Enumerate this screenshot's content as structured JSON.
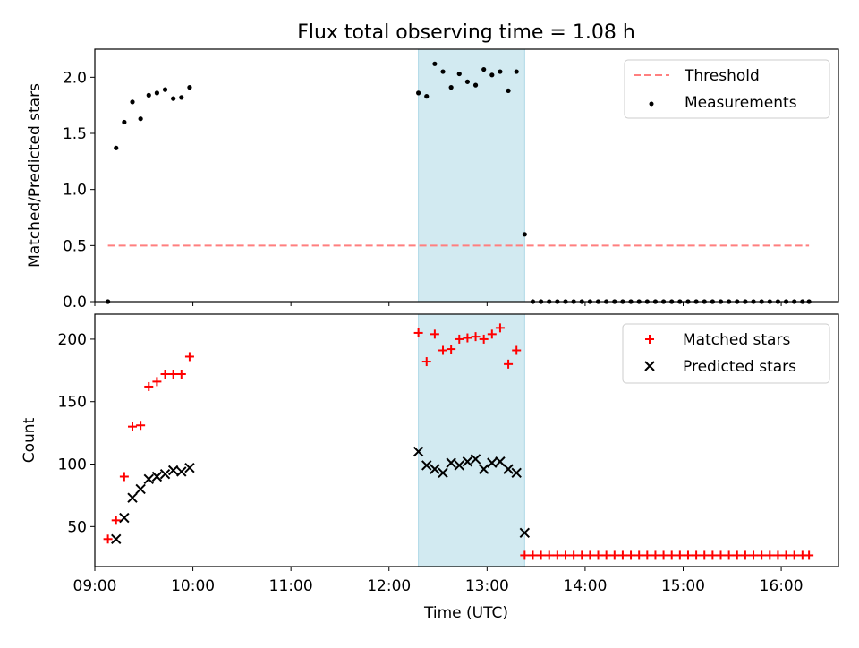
{
  "title": "Flux total observing time = 1.08 h",
  "colors": {
    "threshold": "#ff7f7f",
    "highlight": "#add8e6",
    "measurement": "#000000",
    "matched": "#ff0000",
    "predicted": "#000000"
  },
  "chart_data": [
    {
      "type": "scatter",
      "ylabel": "Matched/Predicted stars",
      "ylim": [
        0,
        2.25
      ],
      "xlim": [
        "09:00",
        "16:35"
      ],
      "yticks": [
        "0.0",
        "0.5",
        "1.0",
        "1.5",
        "2.0"
      ],
      "highlight_span": [
        "12:18",
        "13:23"
      ],
      "legend_position": "top-right",
      "legend": [
        "Threshold",
        "Measurements"
      ],
      "threshold": {
        "name": "Threshold",
        "value": 0.5,
        "x": [
          "09:08",
          "16:17"
        ]
      },
      "series": [
        {
          "name": "Measurements",
          "x": [
            "09:08",
            "09:13",
            "09:18",
            "09:23",
            "09:28",
            "09:33",
            "09:38",
            "09:43",
            "09:48",
            "09:53",
            "09:58",
            "12:18",
            "12:23",
            "12:28",
            "12:33",
            "12:38",
            "12:43",
            "12:48",
            "12:53",
            "12:58",
            "13:03",
            "13:08",
            "13:13",
            "13:18",
            "13:23",
            "13:28",
            "13:33",
            "13:38",
            "13:43",
            "13:48",
            "13:53",
            "13:58",
            "14:03",
            "14:08",
            "14:13",
            "14:18",
            "14:23",
            "14:28",
            "14:33",
            "14:38",
            "14:43",
            "14:48",
            "14:53",
            "14:58",
            "15:03",
            "15:08",
            "15:13",
            "15:18",
            "15:23",
            "15:28",
            "15:33",
            "15:38",
            "15:43",
            "15:48",
            "15:53",
            "15:58",
            "16:03",
            "16:08",
            "16:13",
            "16:17"
          ],
          "y": [
            0.0,
            1.37,
            1.6,
            1.78,
            1.63,
            1.84,
            1.86,
            1.89,
            1.81,
            1.82,
            1.91,
            1.86,
            1.83,
            2.12,
            2.05,
            1.91,
            2.03,
            1.96,
            1.93,
            2.07,
            2.02,
            2.05,
            1.88,
            2.05,
            0.6,
            0,
            0,
            0,
            0,
            0,
            0,
            0,
            0,
            0,
            0,
            0,
            0,
            0,
            0,
            0,
            0,
            0,
            0,
            0,
            0,
            0,
            0,
            0,
            0,
            0,
            0,
            0,
            0,
            0,
            0,
            0,
            0,
            0,
            0,
            0
          ]
        }
      ]
    },
    {
      "type": "scatter",
      "xlabel": "Time (UTC)",
      "ylabel": "Count",
      "ylim": [
        18,
        220
      ],
      "xlim": [
        "09:00",
        "16:35"
      ],
      "xticks": [
        "09:00",
        "10:00",
        "11:00",
        "12:00",
        "13:00",
        "14:00",
        "15:00",
        "16:00"
      ],
      "yticks": [
        "50",
        "100",
        "150",
        "200"
      ],
      "highlight_span": [
        "12:18",
        "13:23"
      ],
      "legend_position": "top-right",
      "legend": [
        "Matched stars",
        "Predicted stars"
      ],
      "series": [
        {
          "name": "Matched stars",
          "x": [
            "09:08",
            "09:13",
            "09:18",
            "09:23",
            "09:28",
            "09:33",
            "09:38",
            "09:43",
            "09:48",
            "09:53",
            "09:58",
            "12:18",
            "12:23",
            "12:28",
            "12:33",
            "12:38",
            "12:43",
            "12:48",
            "12:53",
            "12:58",
            "13:03",
            "13:08",
            "13:13",
            "13:18",
            "13:23",
            "13:28",
            "13:33",
            "13:38",
            "13:43",
            "13:48",
            "13:53",
            "13:58",
            "14:03",
            "14:08",
            "14:13",
            "14:18",
            "14:23",
            "14:28",
            "14:33",
            "14:38",
            "14:43",
            "14:48",
            "14:53",
            "14:58",
            "15:03",
            "15:08",
            "15:13",
            "15:18",
            "15:23",
            "15:28",
            "15:33",
            "15:38",
            "15:43",
            "15:48",
            "15:53",
            "15:58",
            "16:03",
            "16:08",
            "16:13",
            "16:17"
          ],
          "y": [
            40,
            55,
            90,
            130,
            131,
            162,
            166,
            172,
            172,
            172,
            186,
            205,
            182,
            204,
            191,
            192,
            200,
            201,
            202,
            200,
            204,
            209,
            180,
            191,
            27,
            27,
            27,
            27,
            27,
            27,
            27,
            27,
            27,
            27,
            27,
            27,
            27,
            27,
            27,
            27,
            27,
            27,
            27,
            27,
            27,
            27,
            27,
            27,
            27,
            27,
            27,
            27,
            27,
            27,
            27,
            27,
            27,
            27,
            27,
            27
          ]
        },
        {
          "name": "Predicted stars",
          "x": [
            "09:13",
            "09:18",
            "09:23",
            "09:28",
            "09:33",
            "09:38",
            "09:43",
            "09:48",
            "09:53",
            "09:58",
            "12:18",
            "12:23",
            "12:28",
            "12:33",
            "12:38",
            "12:43",
            "12:48",
            "12:53",
            "12:58",
            "13:03",
            "13:08",
            "13:13",
            "13:18",
            "13:23"
          ],
          "y": [
            40,
            57,
            73,
            80,
            88,
            90,
            92,
            95,
            94,
            97,
            110,
            99,
            96,
            93,
            101,
            99,
            102,
            104,
            96,
            101,
            102,
            96,
            93,
            45
          ]
        }
      ]
    }
  ]
}
